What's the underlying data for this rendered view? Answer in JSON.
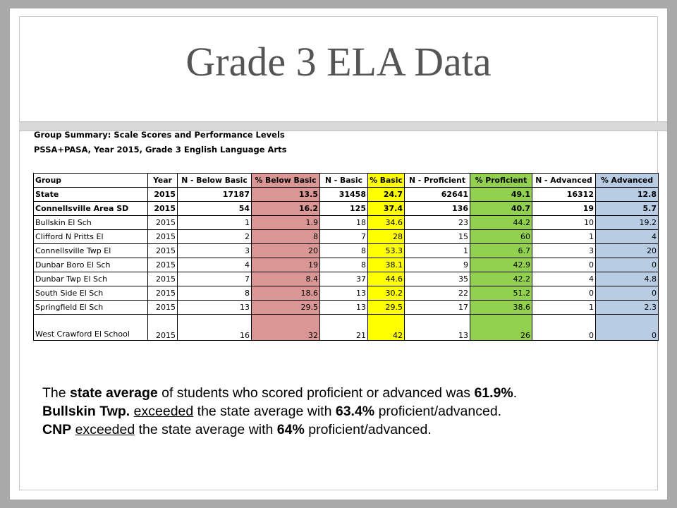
{
  "title": "Grade 3 ELA Data",
  "captions": {
    "line1": "Group Summary: Scale Scores and Performance Levels",
    "line2": "PSSA+PASA, Year 2015, Grade 3 English Language Arts"
  },
  "table": {
    "headers": [
      "Group",
      "Year",
      "N - Below Basic",
      "% Below Basic",
      "N - Basic",
      "% Basic",
      "N - Proficient",
      "% Proficient",
      "N - Advanced",
      "% Advanced"
    ],
    "rows": [
      [
        "State",
        "2015",
        "17187",
        "13.5",
        "31458",
        "24.7",
        "62641",
        "49.1",
        "16312",
        "12.8"
      ],
      [
        "Connellsville Area SD",
        "2015",
        "54",
        "16.2",
        "125",
        "37.4",
        "136",
        "40.7",
        "19",
        "5.7"
      ],
      [
        "Bullskin El Sch",
        "2015",
        "1",
        "1.9",
        "18",
        "34.6",
        "23",
        "44.2",
        "10",
        "19.2"
      ],
      [
        "Clifford N Pritts El",
        "2015",
        "2",
        "8",
        "7",
        "28",
        "15",
        "60",
        "1",
        "4"
      ],
      [
        "Connellsville Twp El",
        "2015",
        "3",
        "20",
        "8",
        "53.3",
        "1",
        "6.7",
        "3",
        "20"
      ],
      [
        "Dunbar Boro El Sch",
        "2015",
        "4",
        "19",
        "8",
        "38.1",
        "9",
        "42.9",
        "0",
        "0"
      ],
      [
        "Dunbar Twp El Sch",
        "2015",
        "7",
        "8.4",
        "37",
        "44.6",
        "35",
        "42.2",
        "4",
        "4.8"
      ],
      [
        "South Side El Sch",
        "2015",
        "8",
        "18.6",
        "13",
        "30.2",
        "22",
        "51.2",
        "0",
        "0"
      ],
      [
        "Springfield El Sch",
        "2015",
        "13",
        "29.5",
        "13",
        "29.5",
        "17",
        "38.6",
        "1",
        "2.3"
      ],
      [
        "West Crawford El School",
        "2015",
        "16",
        "32",
        "21",
        "42",
        "13",
        "26",
        "0",
        "0"
      ]
    ],
    "colors": {
      "below_basic": "#da9694",
      "basic": "#ffff00",
      "proficient": "#92d050",
      "advanced": "#b8cce4"
    }
  },
  "summary": {
    "line1": {
      "a": "The ",
      "b": "state average",
      "c": " of students who scored proficient or advanced was ",
      "d": "61.9%",
      "e": "."
    },
    "line2": {
      "a": "Bullskin Twp.",
      "b": " ",
      "c": "exceeded",
      "d": " the state average with ",
      "e": "63.4%",
      "f": " proficient/advanced."
    },
    "line3": {
      "a": "CNP",
      "b": " ",
      "c": "exceeded",
      "d": " the state average with ",
      "e": "64%",
      "f": " proficient/advanced."
    }
  }
}
